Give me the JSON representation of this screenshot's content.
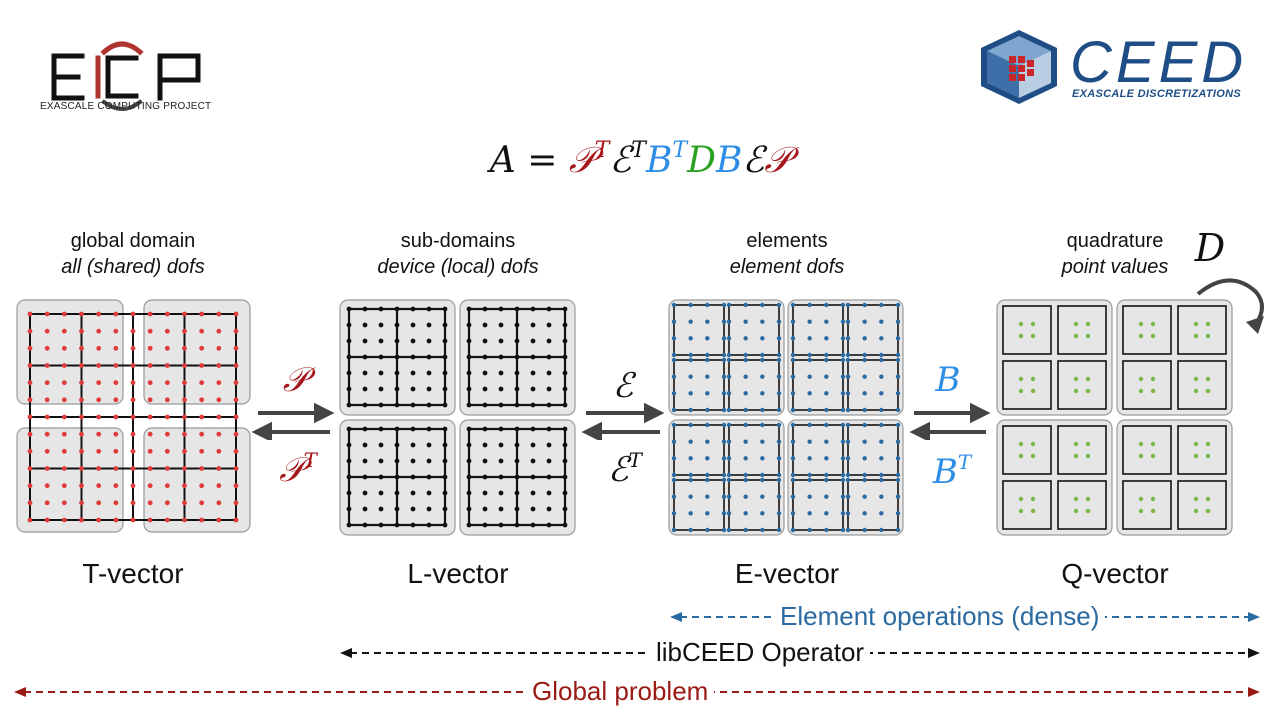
{
  "header": {
    "ecp_logo_text": "EXASCALE COMPUTING PROJECT",
    "ceed_logo_word": "CEED",
    "ceed_logo_sub": "EXASCALE DISCRETIZATIONS"
  },
  "formula": {
    "lhs": "A",
    "eq": "=",
    "terms": [
      {
        "sym": "𝒫",
        "sup": "T",
        "color": "#a5171b"
      },
      {
        "sym": "ℰ",
        "sup": "T",
        "color": "#111111"
      },
      {
        "sym": "B",
        "sup": "T",
        "color": "#2e8ee6"
      },
      {
        "sym": "D",
        "sup": "",
        "color": "#2ba121"
      },
      {
        "sym": "B",
        "sup": "",
        "color": "#2e8ee6"
      },
      {
        "sym": "ℰ",
        "sup": "",
        "color": "#111111"
      },
      {
        "sym": "𝒫",
        "sup": "",
        "color": "#a5171b"
      }
    ]
  },
  "stages": [
    {
      "title": "global domain",
      "subtitle": "all (shared) dofs",
      "vector": "T-vector"
    },
    {
      "title": "sub-domains",
      "subtitle": "device (local) dofs",
      "vector": "L-vector"
    },
    {
      "title": "elements",
      "subtitle": "element dofs",
      "vector": "E-vector"
    },
    {
      "title": "quadrature",
      "subtitle": "point values",
      "vector": "Q-vector"
    }
  ],
  "operators": [
    {
      "forward": "𝒫",
      "backward": "𝒫",
      "backward_sup": "T",
      "color": "#a5171b"
    },
    {
      "forward": "ℰ",
      "backward": "ℰ",
      "backward_sup": "T",
      "color": "#111111"
    },
    {
      "forward": "B",
      "backward": "B",
      "backward_sup": "T",
      "color": "#2e8ee6"
    }
  ],
  "d_operator": {
    "label": "D",
    "color": "#2ba121"
  },
  "spans": [
    {
      "label": "Element operations (dense)",
      "color": "#2a6aa0"
    },
    {
      "label": "libCEED Operator",
      "color": "#111111"
    },
    {
      "label": "Global problem",
      "color": "#9a1a14"
    }
  ],
  "colors": {
    "t_dots": "#e03b3b",
    "l_dots": "#111111",
    "e_dots": "#2a6aa0",
    "q_dots": "#7ab84a",
    "panel_fill": "#e6e6e6",
    "panel_stroke": "#9a9a9a"
  }
}
